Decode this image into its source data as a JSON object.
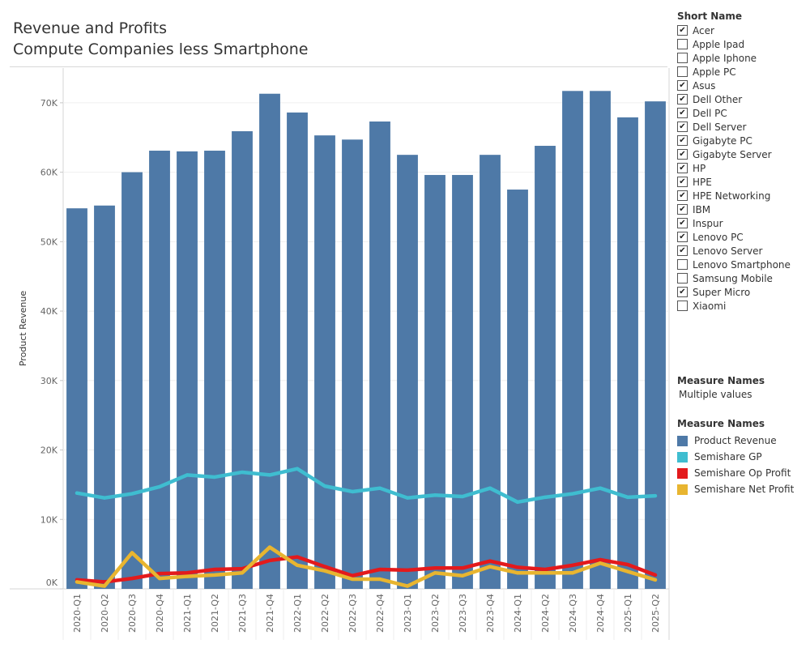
{
  "title": {
    "line1": "Revenue and Profits",
    "line2": "Compute Companies less Smartphone"
  },
  "filter": {
    "header": "Short Name",
    "items": [
      {
        "label": "Acer",
        "checked": true
      },
      {
        "label": "Apple Ipad",
        "checked": false
      },
      {
        "label": "Apple Iphone",
        "checked": false
      },
      {
        "label": "Apple PC",
        "checked": false
      },
      {
        "label": "Asus",
        "checked": true
      },
      {
        "label": "Dell Other",
        "checked": true
      },
      {
        "label": "Dell PC",
        "checked": true
      },
      {
        "label": "Dell Server",
        "checked": true
      },
      {
        "label": "Gigabyte PC",
        "checked": true
      },
      {
        "label": "Gigabyte Server",
        "checked": true
      },
      {
        "label": "HP",
        "checked": true
      },
      {
        "label": "HPE",
        "checked": true
      },
      {
        "label": "HPE Networking",
        "checked": true
      },
      {
        "label": "IBM",
        "checked": true
      },
      {
        "label": "Inspur",
        "checked": true
      },
      {
        "label": "Lenovo PC",
        "checked": true
      },
      {
        "label": "Lenovo Server",
        "checked": true
      },
      {
        "label": "Lenovo Smartphone",
        "checked": false
      },
      {
        "label": "Samsung Mobile",
        "checked": false
      },
      {
        "label": "Super Micro",
        "checked": true
      },
      {
        "label": "Xiaomi",
        "checked": false
      }
    ],
    "check_glyph": "✔"
  },
  "measure_filter": {
    "header": "Measure Names",
    "value": "Multiple values"
  },
  "legend": {
    "header": "Measure Names",
    "items": [
      {
        "label": "Product Revenue",
        "color": "#4e79a7"
      },
      {
        "label": "Semishare GP",
        "color": "#3fbdd0"
      },
      {
        "label": "Semishare Op Profit",
        "color": "#e31a1c"
      },
      {
        "label": "Semishare Net Profit",
        "color": "#e8b530"
      }
    ]
  },
  "chart_data": {
    "type": "bar",
    "title": "Revenue and Profits",
    "subtitle": "Compute Companies less Smartphone",
    "xlabel": "",
    "ylabel": "Product Revenue",
    "ylim": [
      0,
      75000
    ],
    "yticks": [
      0,
      10000,
      20000,
      30000,
      40000,
      50000,
      60000,
      70000
    ],
    "ytick_labels": [
      "0K",
      "10K",
      "20K",
      "30K",
      "40K",
      "50K",
      "60K",
      "70K"
    ],
    "grid": true,
    "legend_position": "right",
    "categories": [
      "2020-Q1",
      "2020-Q2",
      "2020-Q3",
      "2020-Q4",
      "2021-Q1",
      "2021-Q2",
      "2021-Q3",
      "2021-Q4",
      "2022-Q1",
      "2022-Q2",
      "2022-Q3",
      "2022-Q4",
      "2023-Q1",
      "2023-Q2",
      "2023-Q3",
      "2023-Q4",
      "2024-Q1",
      "2024-Q2",
      "2024-Q3",
      "2024-Q4",
      "2025-Q1",
      "2025-Q2"
    ],
    "series": [
      {
        "name": "Product Revenue",
        "type": "bar",
        "color": "#4e79a7",
        "values": [
          54800,
          55200,
          60000,
          63100,
          63000,
          63100,
          65900,
          71300,
          68600,
          65300,
          64700,
          67300,
          62500,
          59600,
          59600,
          62500,
          57500,
          63800,
          71700,
          71700,
          67900,
          70200
        ]
      },
      {
        "name": "Semishare GP",
        "type": "line",
        "color": "#3fbdd0",
        "values": [
          13800,
          13100,
          13700,
          14700,
          16400,
          16100,
          16800,
          16400,
          17300,
          14800,
          14000,
          14500,
          13100,
          13500,
          13300,
          14500,
          12500,
          13200,
          13700,
          14500,
          13200,
          13400
        ]
      },
      {
        "name": "Semishare Op Profit",
        "type": "line",
        "color": "#e31a1c",
        "values": [
          1300,
          1000,
          1500,
          2200,
          2300,
          2800,
          2900,
          4100,
          4600,
          3200,
          1900,
          2800,
          2700,
          3000,
          3000,
          4000,
          3100,
          2800,
          3400,
          4200,
          3500,
          2000
        ]
      },
      {
        "name": "Semishare Net Profit",
        "type": "line",
        "color": "#e8b530",
        "values": [
          1000,
          400,
          5200,
          1500,
          1800,
          2000,
          2300,
          6000,
          3400,
          2600,
          1400,
          1400,
          400,
          2300,
          1900,
          3200,
          2300,
          2300,
          2300,
          3700,
          2500,
          1300
        ]
      }
    ]
  }
}
